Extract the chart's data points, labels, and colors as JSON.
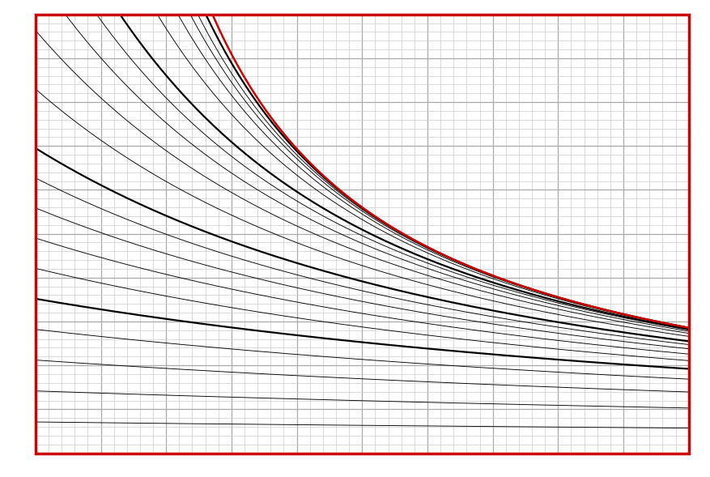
{
  "figsize": [
    8.77,
    5.89
  ],
  "dpi": 100,
  "bg_color": "#ffffff",
  "border_color": "#cc0000",
  "grid_minor_color": "#cccccc",
  "grid_major_color": "#aaaaaa",
  "grid_minor_lw": 0.5,
  "grid_major_lw": 0.9,
  "black_color": "#000000",
  "red_color": "#cc0000",
  "border_lw": 2.5,
  "x_display_min": 0.0,
  "x_display_max": 5.0,
  "y_display_min": 0.0,
  "y_display_max": 5.0,
  "r_min_pct": 0.5,
  "r_max_pct": 25.0,
  "y_ratio_min": 0.0,
  "y_ratio_max": 14.0,
  "n_black": [
    1,
    2,
    3,
    4,
    5,
    6,
    7,
    8,
    9,
    10,
    12,
    14,
    16,
    18,
    20,
    25,
    30,
    35,
    40,
    50
  ],
  "n_thick": [
    5,
    10,
    20,
    50
  ],
  "n_red": [
    100
  ],
  "thin_lw": 0.65,
  "thick_lw": 1.6,
  "red_lw": 1.8,
  "n_points": 600
}
